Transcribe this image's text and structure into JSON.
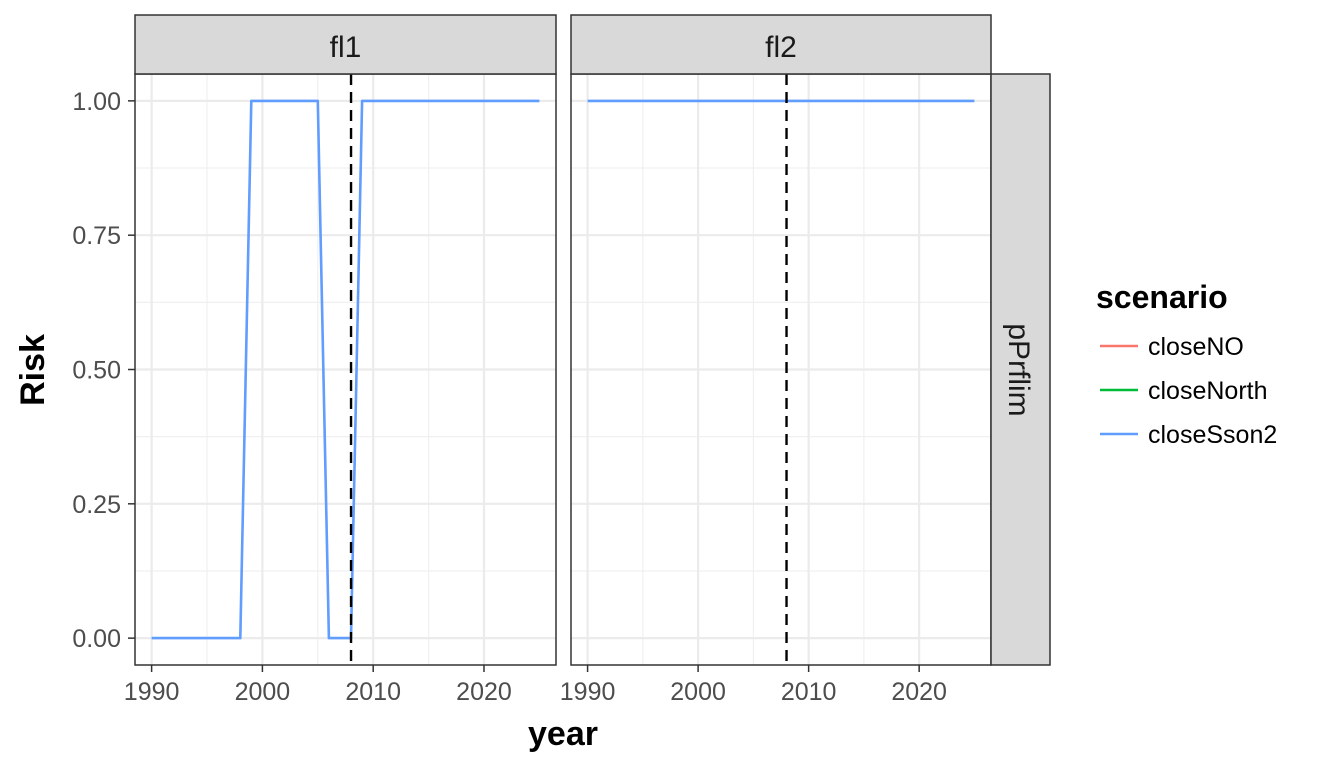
{
  "chart_data": {
    "type": "line",
    "facets": {
      "columns": [
        "fl1",
        "fl2"
      ],
      "row_strip": "pPrflim"
    },
    "xlabel": "year",
    "ylabel": "Risk",
    "xlim": [
      1988.5,
      2026.5
    ],
    "ylim": [
      -0.05,
      1.05
    ],
    "x_ticks": [
      1990,
      2000,
      2010,
      2020
    ],
    "x_tick_labels": [
      "1990",
      "2000",
      "2010",
      "2020"
    ],
    "y_ticks": [
      0,
      0.25,
      0.5,
      0.75,
      1
    ],
    "y_tick_labels": [
      "0.00",
      "0.25",
      "0.50",
      "0.75",
      "1.00"
    ],
    "grid": true,
    "reference_line": {
      "x": 2008,
      "style": "dashed"
    },
    "legend": {
      "title": "scenario",
      "placement": "right",
      "entries": [
        {
          "name": "closeNO",
          "color": "#F8766D"
        },
        {
          "name": "closeNorth",
          "color": "#00BA38"
        },
        {
          "name": "closeSson2",
          "color": "#619CFF"
        }
      ]
    },
    "panels": [
      {
        "facet": "fl1",
        "series": [
          {
            "name": "closeSson2",
            "x": [
              1990,
              1991,
              1992,
              1993,
              1994,
              1995,
              1996,
              1997,
              1998,
              1999,
              2000,
              2001,
              2002,
              2003,
              2004,
              2005,
              2006,
              2007,
              2008,
              2009,
              2010,
              2011,
              2012,
              2013,
              2014,
              2015,
              2016,
              2017,
              2018,
              2019,
              2020,
              2021,
              2022,
              2023,
              2024,
              2025
            ],
            "y": [
              0,
              0,
              0,
              0,
              0,
              0,
              0,
              0,
              0,
              1,
              1,
              1,
              1,
              1,
              1,
              1,
              0,
              0,
              0,
              1,
              1,
              1,
              1,
              1,
              1,
              1,
              1,
              1,
              1,
              1,
              1,
              1,
              1,
              1,
              1,
              1
            ]
          }
        ]
      },
      {
        "facet": "fl2",
        "series": [
          {
            "name": "closeSson2",
            "x": [
              1990,
              2025
            ],
            "y": [
              1,
              1
            ]
          }
        ]
      }
    ]
  }
}
